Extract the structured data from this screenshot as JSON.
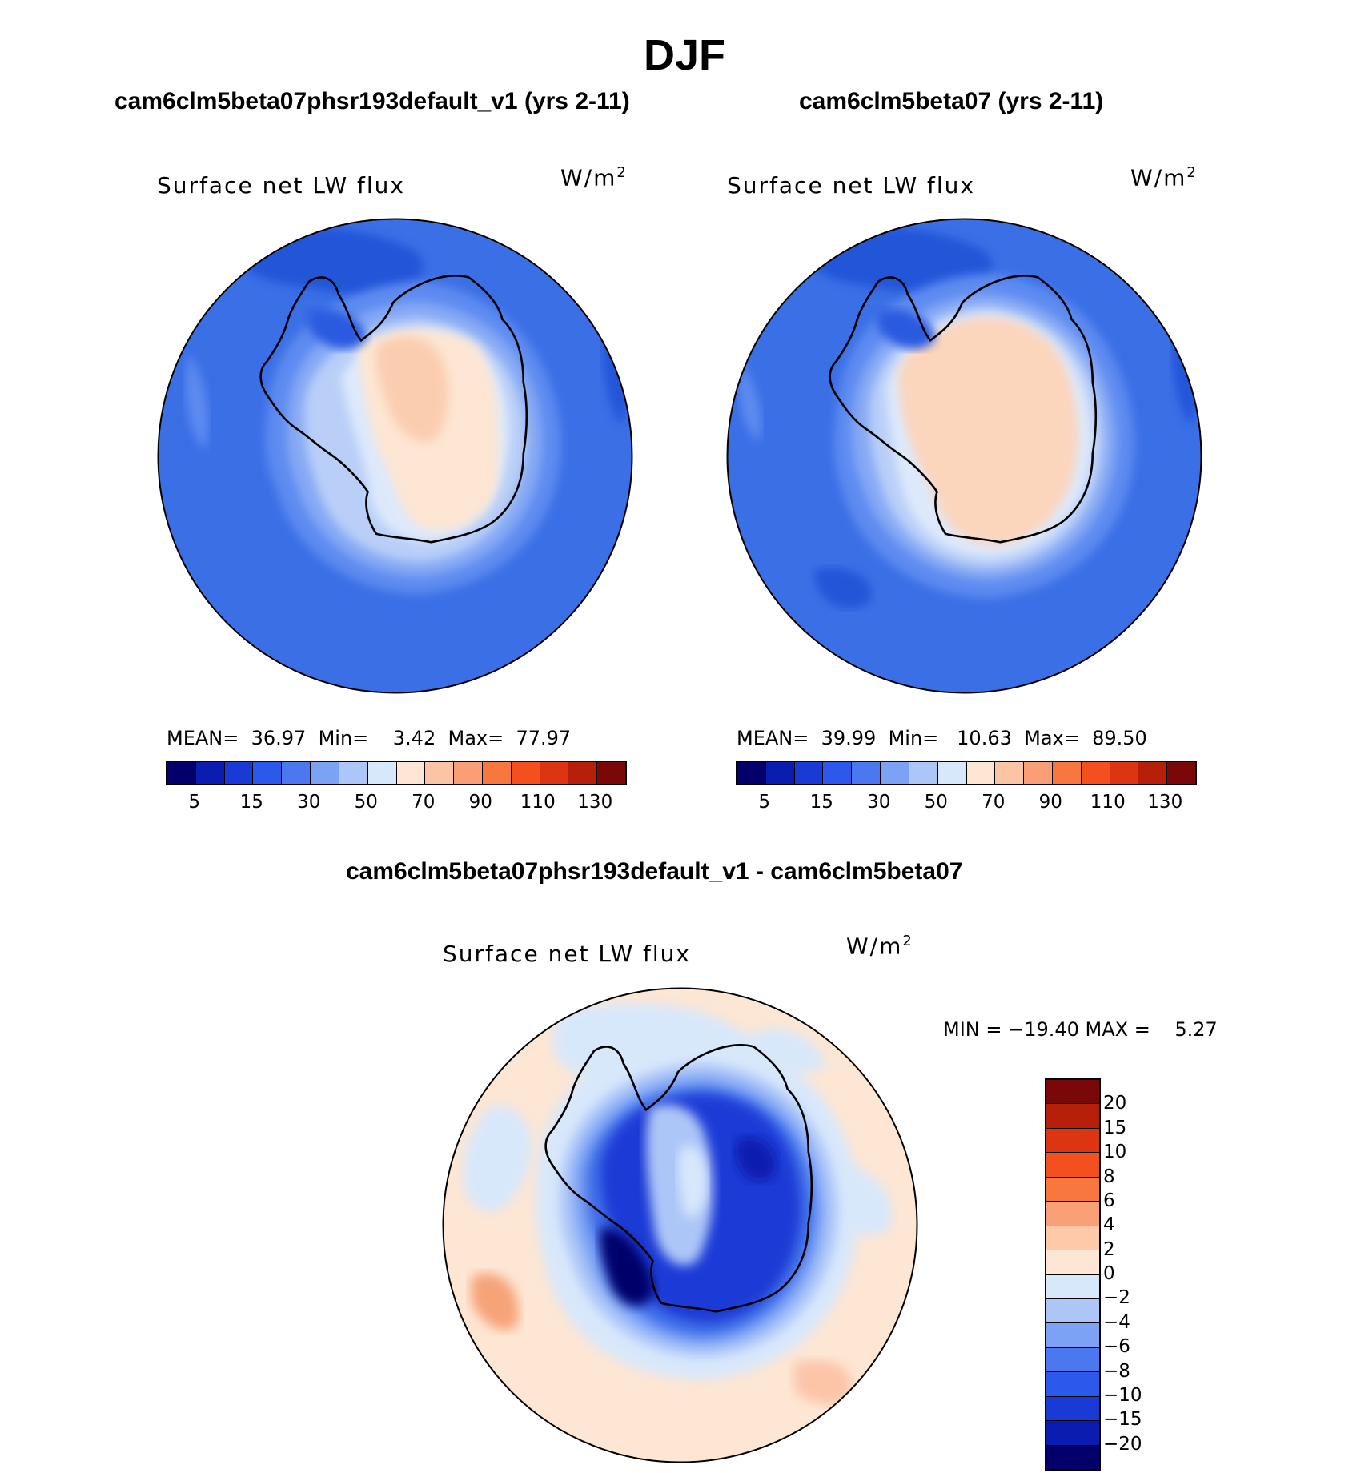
{
  "figure": {
    "season": "DJF",
    "variable": "Surface net LW flux",
    "units": "W/m",
    "units_exp": "2"
  },
  "panels": [
    {
      "title": "cam6clm5beta07phsr193default_v1 (yrs 2-11)",
      "stats_text": "MEAN=  36.97  Min=    3.42  Max=  77.97",
      "mean": 36.97,
      "min": 3.42,
      "max": 77.97
    },
    {
      "title": "cam6clm5beta07 (yrs 2-11)",
      "stats_text": "MEAN=  39.99  Min=   10.63  Max=  89.50",
      "mean": 39.99,
      "min": 10.63,
      "max": 89.5
    }
  ],
  "diff_panel": {
    "title": "cam6clm5beta07phsr193default_v1 - cam6clm5beta07",
    "stats_text": "MIN = −19.40 MAX =    5.27",
    "min": -19.4,
    "max": 5.27
  },
  "colorbar_main": {
    "colors": [
      "#04006b",
      "#0a1db0",
      "#1a3ad6",
      "#2d58ec",
      "#4b78ee",
      "#7ca2f5",
      "#adc6f8",
      "#d8e8fb",
      "#fde6d3",
      "#fbc4a5",
      "#f99e76",
      "#f7773f",
      "#f4501f",
      "#dd3412",
      "#b61f0a",
      "#7b0808"
    ],
    "tick_labels": [
      "5",
      "15",
      "30",
      "50",
      "70",
      "90",
      "110",
      "130"
    ]
  },
  "colorbar_diff": {
    "colors": [
      "#7b0808",
      "#b61f0a",
      "#dd3412",
      "#f4501f",
      "#f7773f",
      "#f9a079",
      "#fdc9a8",
      "#fde6d3",
      "#d8e8fb",
      "#adc6f8",
      "#7ca2f5",
      "#4b78ee",
      "#2d58ec",
      "#1a3ad6",
      "#0a1db0",
      "#04006b"
    ],
    "tick_labels": [
      "20",
      "15",
      "10",
      "8",
      "6",
      "4",
      "2",
      "0",
      "−2",
      "−4",
      "−6",
      "−8",
      "−10",
      "−15",
      "−20"
    ]
  }
}
